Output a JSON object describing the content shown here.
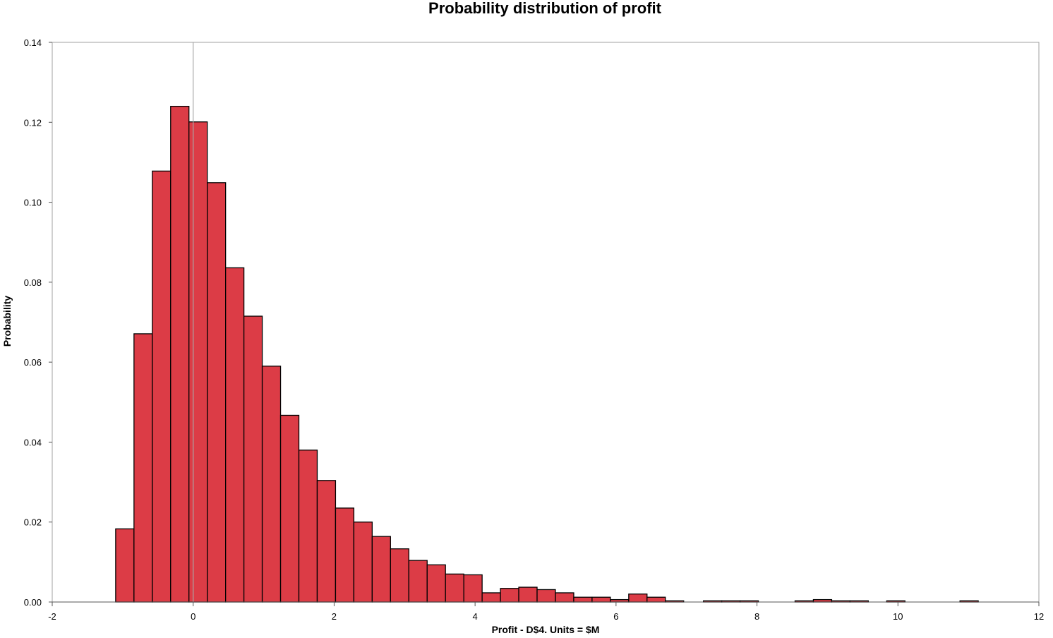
{
  "chart_data": {
    "type": "bar",
    "subtype": "histogram",
    "title": "Probability distribution of profit",
    "xlabel": "Profit - D$4.  Units = $M",
    "ylabel": "Probability",
    "xlim": [
      -2,
      12
    ],
    "ylim": [
      0,
      0.14
    ],
    "xticks": [
      "-2",
      "0",
      "2",
      "4",
      "6",
      "8",
      "10",
      "12"
    ],
    "yticks": [
      "0.00",
      "0.02",
      "0.04",
      "0.06",
      "0.08",
      "0.10",
      "0.12",
      "0.14"
    ],
    "reference_line_x": 0,
    "grid": false,
    "legend": "none",
    "bar_color": "#dc3c46",
    "bar_edge_color": "#000000",
    "bin_width": 0.26,
    "bins": [
      {
        "x0": -1.1,
        "x1": -0.84,
        "value": 0.0183
      },
      {
        "x0": -0.84,
        "x1": -0.58,
        "value": 0.0671
      },
      {
        "x0": -0.58,
        "x1": -0.32,
        "value": 0.1078
      },
      {
        "x0": -0.32,
        "x1": -0.06,
        "value": 0.124
      },
      {
        "x0": -0.06,
        "x1": 0.2,
        "value": 0.1201
      },
      {
        "x0": 0.2,
        "x1": 0.46,
        "value": 0.1049
      },
      {
        "x0": 0.46,
        "x1": 0.72,
        "value": 0.0836
      },
      {
        "x0": 0.72,
        "x1": 0.98,
        "value": 0.0715
      },
      {
        "x0": 0.98,
        "x1": 1.24,
        "value": 0.059
      },
      {
        "x0": 1.24,
        "x1": 1.5,
        "value": 0.0467
      },
      {
        "x0": 1.5,
        "x1": 1.76,
        "value": 0.038
      },
      {
        "x0": 1.76,
        "x1": 2.02,
        "value": 0.0304
      },
      {
        "x0": 2.02,
        "x1": 2.28,
        "value": 0.0235
      },
      {
        "x0": 2.28,
        "x1": 2.54,
        "value": 0.02
      },
      {
        "x0": 2.54,
        "x1": 2.8,
        "value": 0.0164
      },
      {
        "x0": 2.8,
        "x1": 3.06,
        "value": 0.0133
      },
      {
        "x0": 3.06,
        "x1": 3.32,
        "value": 0.0104
      },
      {
        "x0": 3.32,
        "x1": 3.58,
        "value": 0.0093
      },
      {
        "x0": 3.58,
        "x1": 3.84,
        "value": 0.007
      },
      {
        "x0": 3.84,
        "x1": 4.1,
        "value": 0.0068
      },
      {
        "x0": 4.1,
        "x1": 4.36,
        "value": 0.0023
      },
      {
        "x0": 4.36,
        "x1": 4.62,
        "value": 0.0034
      },
      {
        "x0": 4.62,
        "x1": 4.88,
        "value": 0.0037
      },
      {
        "x0": 4.88,
        "x1": 5.14,
        "value": 0.0031
      },
      {
        "x0": 5.14,
        "x1": 5.4,
        "value": 0.0023
      },
      {
        "x0": 5.4,
        "x1": 5.66,
        "value": 0.0012
      },
      {
        "x0": 5.66,
        "x1": 5.92,
        "value": 0.0012
      },
      {
        "x0": 5.92,
        "x1": 6.18,
        "value": 0.0006
      },
      {
        "x0": 6.18,
        "x1": 6.44,
        "value": 0.002
      },
      {
        "x0": 6.44,
        "x1": 6.7,
        "value": 0.0012
      },
      {
        "x0": 6.7,
        "x1": 6.96,
        "value": 0.0003
      },
      {
        "x0": 7.24,
        "x1": 7.5,
        "value": 0.0003
      },
      {
        "x0": 7.5,
        "x1": 7.76,
        "value": 0.0003
      },
      {
        "x0": 7.76,
        "x1": 8.02,
        "value": 0.0003
      },
      {
        "x0": 8.54,
        "x1": 8.8,
        "value": 0.0003
      },
      {
        "x0": 8.8,
        "x1": 9.06,
        "value": 0.0006
      },
      {
        "x0": 9.06,
        "x1": 9.32,
        "value": 0.0003
      },
      {
        "x0": 9.32,
        "x1": 9.58,
        "value": 0.0003
      },
      {
        "x0": 9.84,
        "x1": 10.1,
        "value": 0.0003
      },
      {
        "x0": 10.88,
        "x1": 11.14,
        "value": 0.0003
      }
    ]
  }
}
